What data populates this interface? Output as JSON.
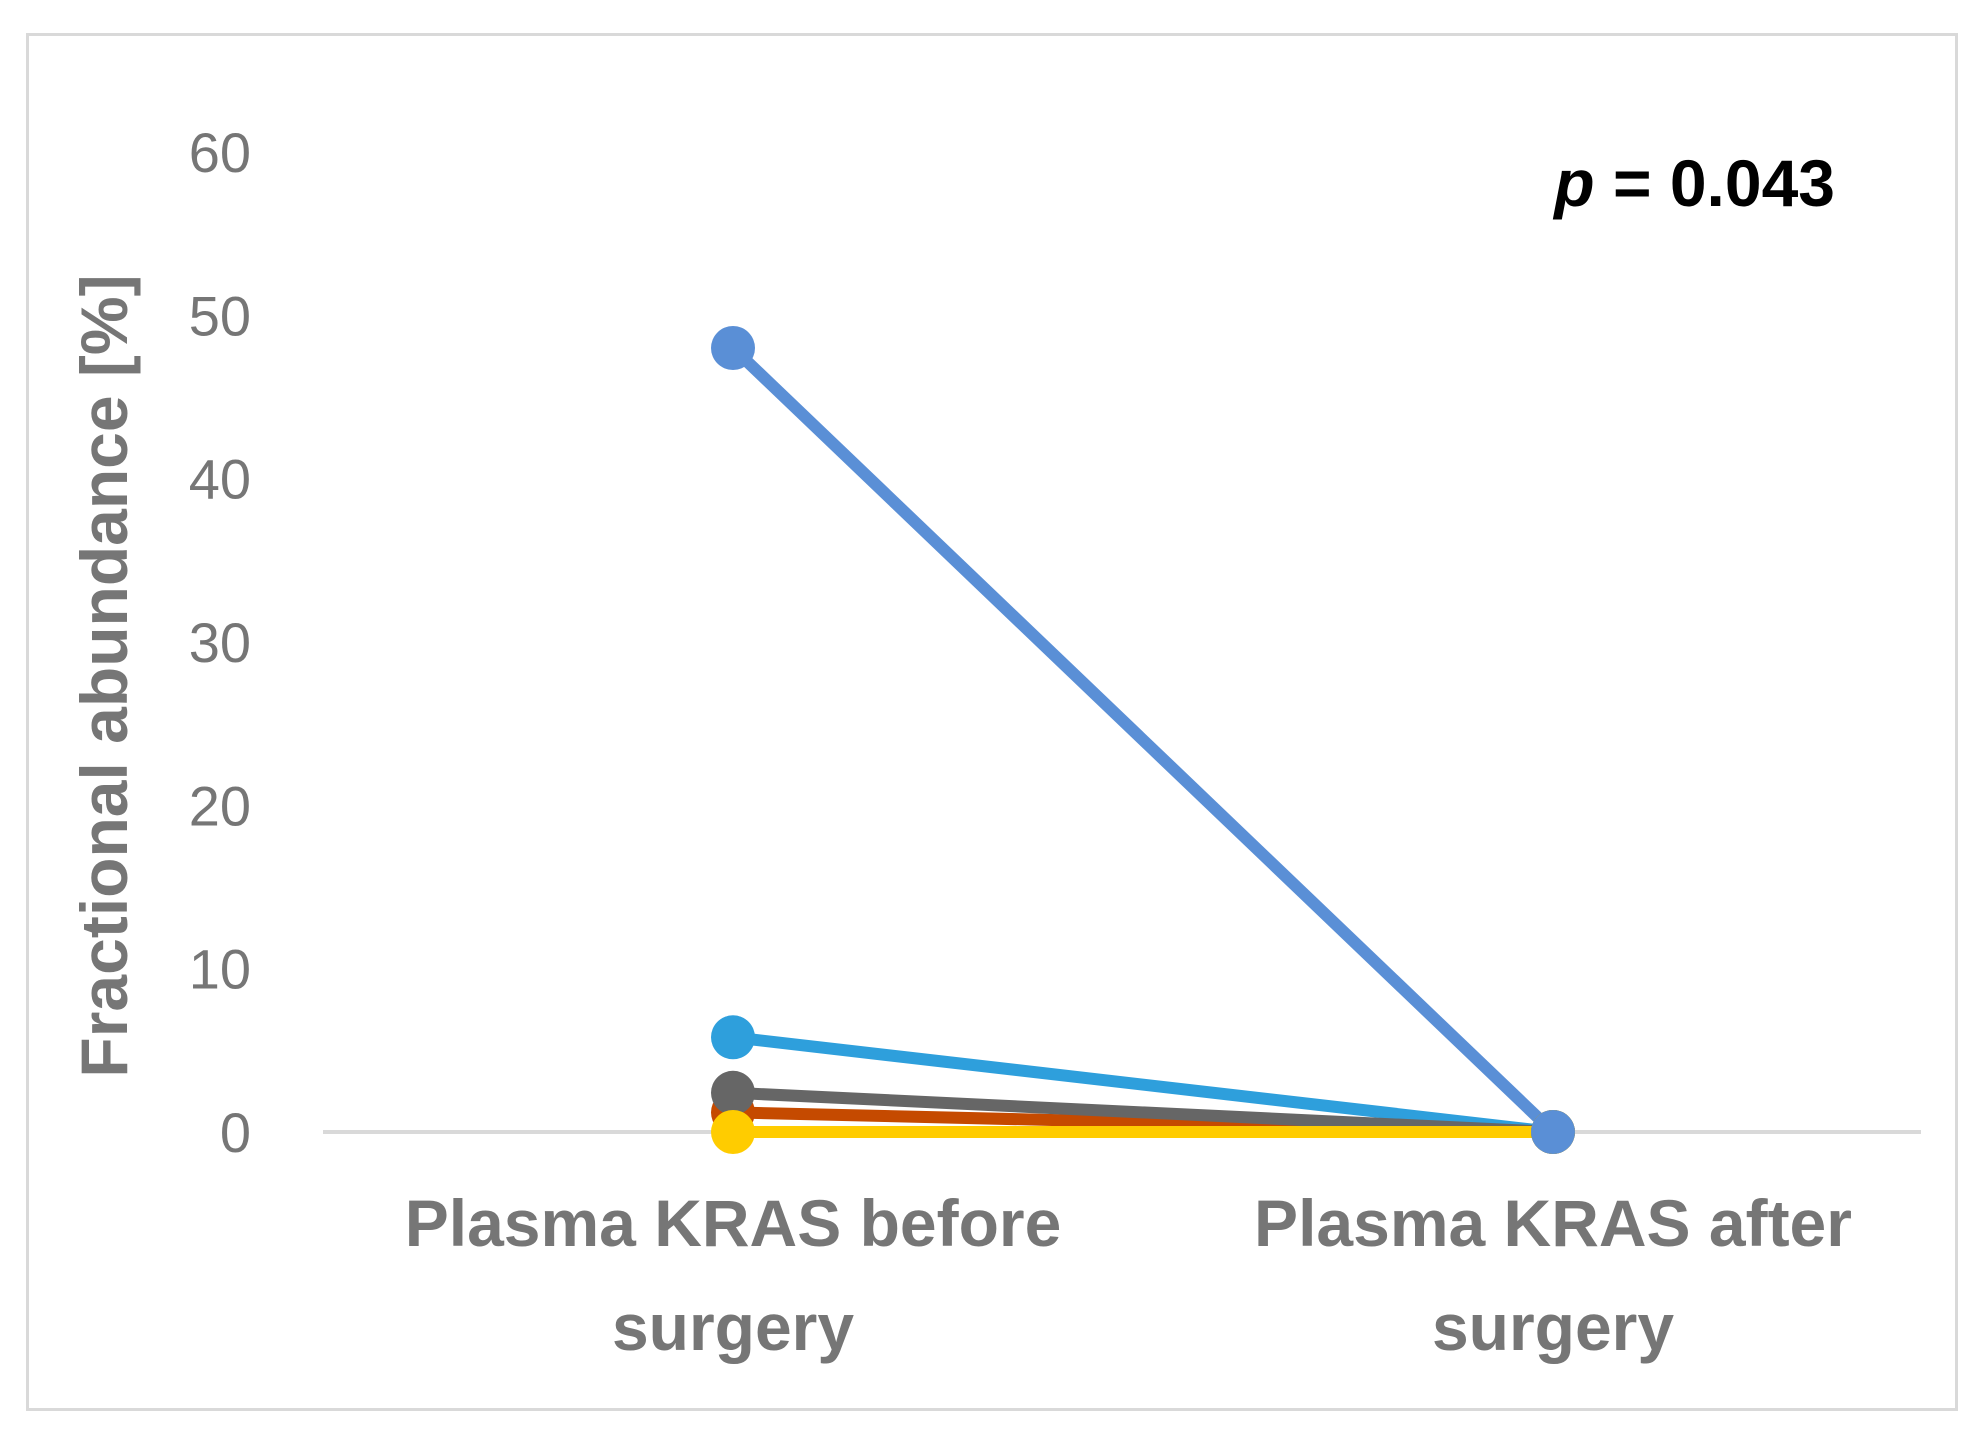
{
  "chart_data": {
    "type": "line",
    "categories": [
      "Plasma KRAS before surgery",
      "Plasma KRAS after surgery"
    ],
    "category_lines": [
      [
        "Plasma KRAS before",
        "surgery"
      ],
      [
        "Plasma KRAS after",
        "surgery"
      ]
    ],
    "series": [
      {
        "color": "#2e9fdc",
        "values": [
          5.8,
          0
        ]
      },
      {
        "color": "#c54a00",
        "values": [
          1.2,
          0
        ]
      },
      {
        "color": "#666666",
        "values": [
          2.4,
          0
        ]
      },
      {
        "color": "#ffcc00",
        "values": [
          0,
          0
        ]
      },
      {
        "color": "#5a8fd6",
        "values": [
          48,
          0
        ]
      }
    ],
    "ylabel": "Fractional abundance [%]",
    "ylim": [
      0,
      60
    ],
    "yticks": [
      0,
      10,
      20,
      30,
      40,
      50,
      60
    ],
    "annotation": {
      "italic": "p",
      "text": " = 0.043"
    },
    "grid": false,
    "legend": "none"
  }
}
